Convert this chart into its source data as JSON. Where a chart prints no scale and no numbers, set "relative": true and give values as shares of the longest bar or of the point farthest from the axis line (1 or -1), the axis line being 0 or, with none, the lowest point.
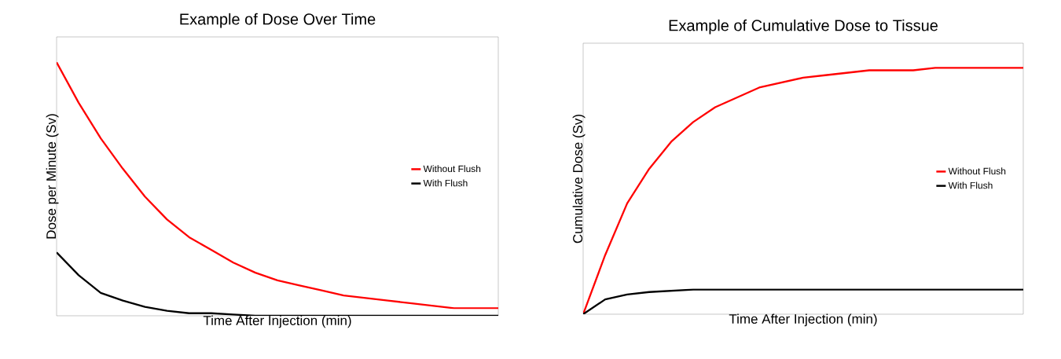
{
  "chart_data": [
    {
      "type": "line",
      "title": "Example of Dose Over Time",
      "xlabel": "Time After Injection (min)",
      "ylabel": "Dose per Minute (Sv)",
      "relative": true,
      "legend": "right",
      "categories": [
        null,
        null,
        null,
        null,
        null,
        null,
        null,
        null,
        null,
        null,
        null,
        null,
        null,
        null,
        null,
        null,
        null,
        null,
        null,
        null,
        null
      ],
      "series": [
        {
          "name": "Without Flush",
          "color": "#ff0000",
          "values": [
            1,
            0.84,
            0.7,
            0.58,
            0.47,
            0.38,
            0.31,
            0.26,
            0.21,
            0.17,
            0.14,
            0.12,
            0.1,
            0.08,
            0.07,
            0.06,
            0.05,
            0.04,
            0.03,
            0.03,
            0.03
          ]
        },
        {
          "name": "With Flush",
          "color": "#000000",
          "values": [
            0.25,
            0.16,
            0.09,
            0.06,
            0.035,
            0.02,
            0.01,
            0.01,
            0.005,
            0,
            0,
            0,
            0,
            0,
            0,
            0,
            0,
            0,
            0,
            0,
            0
          ]
        }
      ]
    },
    {
      "type": "line",
      "title": "Example of Cumulative Dose to Tissue",
      "xlabel": "Time After Injection (min)",
      "ylabel": "Cumulative Dose (Sv)",
      "relative": true,
      "legend": "right",
      "categories": [
        null,
        null,
        null,
        null,
        null,
        null,
        null,
        null,
        null,
        null,
        null,
        null,
        null,
        null,
        null,
        null,
        null,
        null,
        null,
        null,
        null
      ],
      "series": [
        {
          "name": "Without Flush",
          "color": "#ff0000",
          "values": [
            0,
            0.24,
            0.45,
            0.59,
            0.7,
            0.78,
            0.84,
            0.88,
            0.92,
            0.94,
            0.96,
            0.97,
            0.98,
            0.99,
            0.99,
            0.99,
            1,
            1,
            1,
            1,
            1
          ]
        },
        {
          "name": "With Flush",
          "color": "#000000",
          "values": [
            0,
            0.06,
            0.08,
            0.09,
            0.095,
            0.1,
            0.1,
            0.1,
            0.1,
            0.1,
            0.1,
            0.1,
            0.1,
            0.1,
            0.1,
            0.1,
            0.1,
            0.1,
            0.1,
            0.1,
            0.1
          ]
        }
      ]
    }
  ]
}
